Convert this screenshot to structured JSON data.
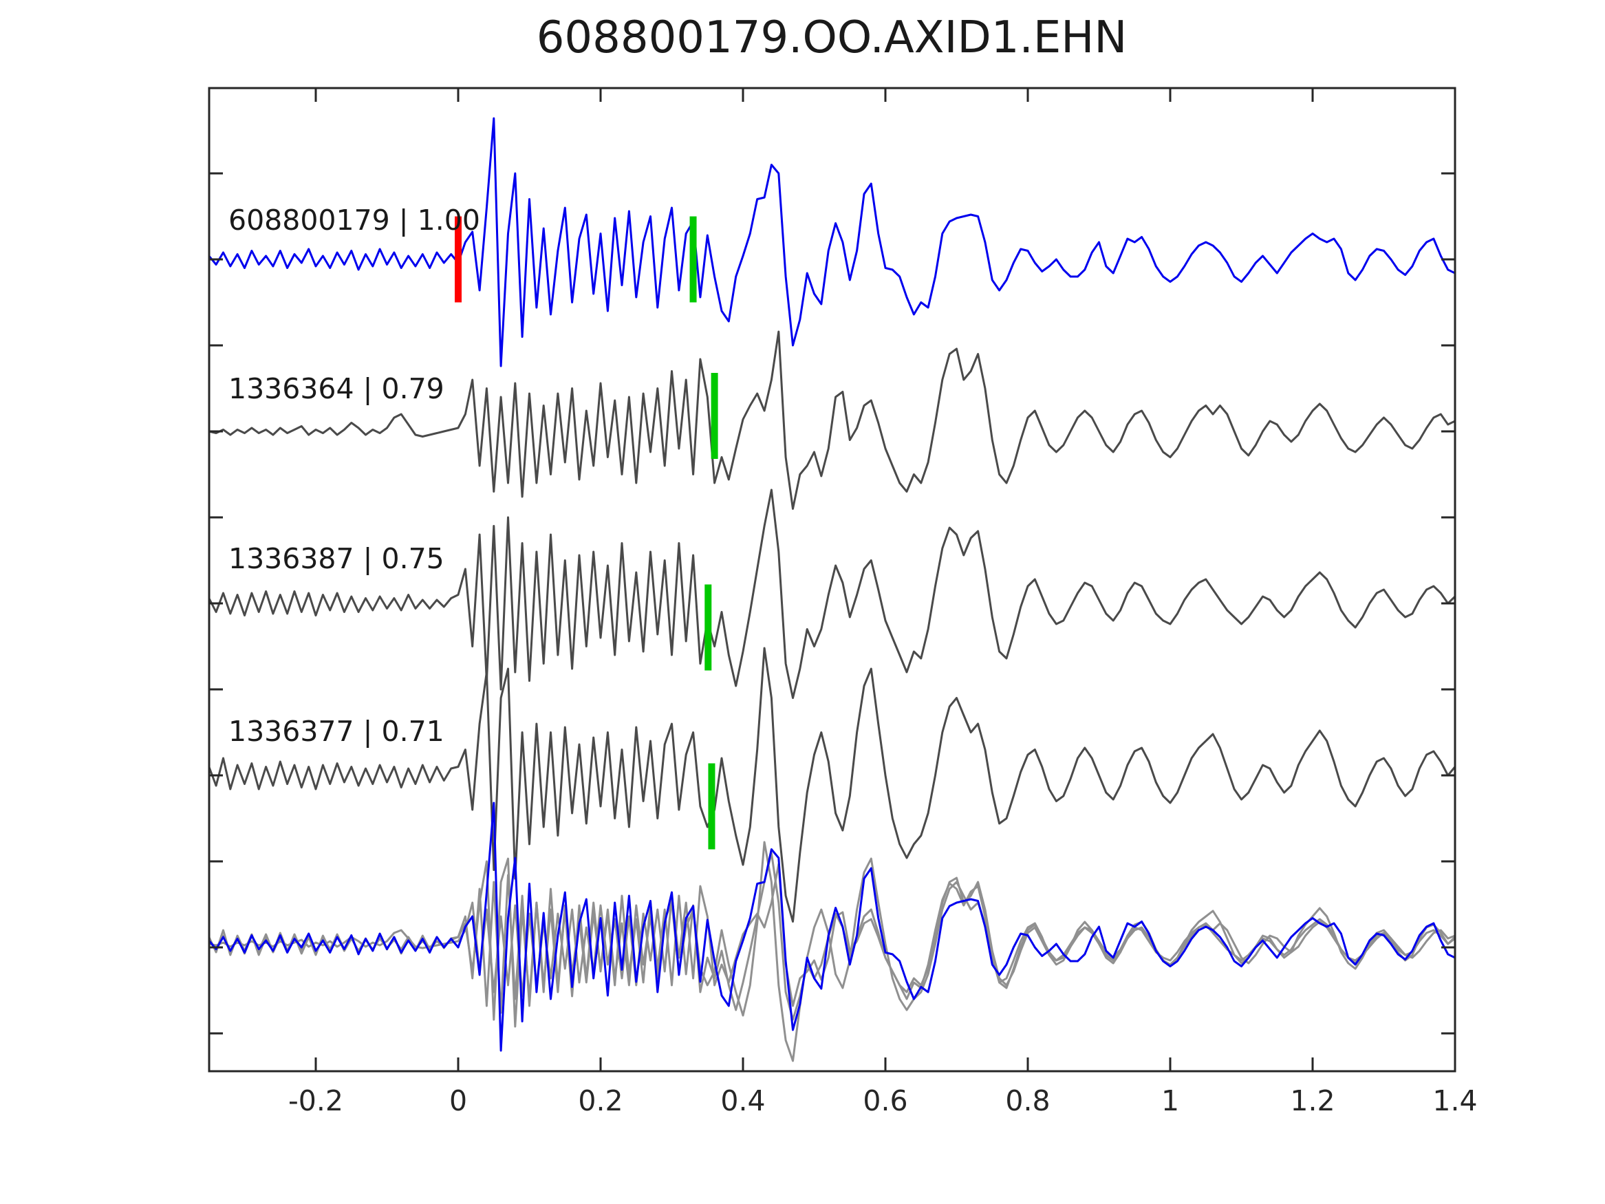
{
  "title": "608800179.OO.AXID1.EHN",
  "chart_data": {
    "type": "line",
    "title": "608800179.OO.AXID1.EHN",
    "xlabel": "",
    "ylabel": "",
    "grid": false,
    "legend_position": "none",
    "xlim": [
      -0.35,
      1.4
    ],
    "x_ticks": [
      -0.2,
      0,
      0.2,
      0.4,
      0.6,
      0.8,
      1,
      1.2,
      1.4
    ],
    "x_tick_labels": [
      "-0.2",
      "0",
      "0.2",
      "0.4",
      "0.6",
      "0.8",
      "1",
      "1.2",
      "1.4"
    ],
    "trace_offsets": [
      4,
      3,
      2,
      1
    ],
    "overlay_offset": 0,
    "sampling": {
      "x0": -0.35,
      "dx": 0.01
    },
    "marker_half_height": 0.25,
    "series": [
      {
        "name": "608800179",
        "label": "608800179 | 1.00",
        "correlation": "1.00",
        "color": "#0000ee",
        "onset_marker": {
          "t": 0.0,
          "amp": 0,
          "color": "#ff0000"
        },
        "pick": {
          "t": 0.33,
          "amp": 0,
          "color": "#00c800"
        },
        "values": [
          0.02,
          -0.03,
          0.04,
          -0.04,
          0.03,
          -0.05,
          0.05,
          -0.03,
          0.02,
          -0.04,
          0.05,
          -0.05,
          0.03,
          -0.02,
          0.06,
          -0.04,
          0.02,
          -0.05,
          0.04,
          -0.03,
          0.05,
          -0.06,
          0.03,
          -0.04,
          0.06,
          -0.03,
          0.04,
          -0.05,
          0.02,
          -0.04,
          0.03,
          -0.05,
          0.04,
          -0.02,
          0.03,
          -0.02,
          0.1,
          0.16,
          -0.18,
          0.3,
          0.82,
          -0.62,
          0.15,
          0.5,
          -0.45,
          0.35,
          -0.28,
          0.18,
          -0.32,
          0.05,
          0.3,
          -0.25,
          0.12,
          0.26,
          -0.2,
          0.15,
          -0.3,
          0.24,
          -0.15,
          0.28,
          -0.22,
          0.1,
          0.25,
          -0.28,
          0.12,
          0.3,
          -0.18,
          0.15,
          0.22,
          -0.22,
          0.14,
          -0.1,
          -0.3,
          -0.36,
          -0.1,
          0.02,
          0.15,
          0.35,
          0.36,
          0.55,
          0.5,
          -0.1,
          -0.5,
          -0.35,
          -0.08,
          -0.2,
          -0.26,
          0.05,
          0.21,
          0.1,
          -0.12,
          0.05,
          0.38,
          0.44,
          0.15,
          -0.05,
          -0.06,
          -0.1,
          -0.22,
          -0.32,
          -0.25,
          -0.28,
          -0.1,
          0.15,
          0.22,
          0.24,
          0.25,
          0.26,
          0.25,
          0.1,
          -0.12,
          -0.18,
          -0.12,
          -0.02,
          0.06,
          0.05,
          -0.02,
          -0.07,
          -0.04,
          0.0,
          -0.06,
          -0.1,
          -0.1,
          -0.06,
          0.04,
          0.1,
          -0.04,
          -0.08,
          0.02,
          0.12,
          0.1,
          0.13,
          0.06,
          -0.04,
          -0.1,
          -0.13,
          -0.1,
          -0.04,
          0.03,
          0.08,
          0.1,
          0.08,
          0.04,
          -0.02,
          -0.1,
          -0.13,
          -0.08,
          -0.02,
          0.02,
          -0.03,
          -0.08,
          -0.02,
          0.04,
          0.08,
          0.12,
          0.15,
          0.12,
          0.1,
          0.12,
          0.06,
          -0.08,
          -0.12,
          -0.06,
          0.02,
          0.06,
          0.05,
          0.0,
          -0.06,
          -0.09,
          -0.04,
          0.05,
          0.1,
          0.12,
          0.02,
          -0.06,
          -0.08
        ]
      },
      {
        "name": "1336364",
        "label": "1336364 | 0.79",
        "correlation": "0.79",
        "color": "#4a4a4a",
        "pick": {
          "t": 0.36,
          "amp": 0.09,
          "color": "#00c800"
        },
        "values": [
          0.0,
          -0.01,
          0.01,
          -0.02,
          0.01,
          -0.01,
          0.02,
          -0.01,
          0.01,
          -0.02,
          0.02,
          -0.01,
          0.01,
          0.03,
          -0.02,
          0.01,
          -0.01,
          0.02,
          -0.02,
          0.01,
          0.05,
          0.02,
          -0.02,
          0.01,
          -0.01,
          0.02,
          0.08,
          0.1,
          0.04,
          -0.02,
          -0.03,
          -0.02,
          -0.01,
          0.0,
          0.01,
          0.02,
          0.1,
          0.3,
          -0.2,
          0.25,
          -0.35,
          0.2,
          -0.3,
          0.28,
          -0.38,
          0.22,
          -0.3,
          0.15,
          -0.25,
          0.22,
          -0.18,
          0.25,
          -0.28,
          0.12,
          -0.2,
          0.28,
          -0.15,
          0.18,
          -0.25,
          0.2,
          -0.3,
          0.22,
          -0.12,
          0.25,
          -0.2,
          0.35,
          -0.1,
          0.3,
          -0.25,
          0.42,
          0.2,
          -0.3,
          -0.15,
          -0.28,
          -0.1,
          0.07,
          0.15,
          0.22,
          0.12,
          0.3,
          0.58,
          -0.15,
          -0.45,
          -0.25,
          -0.2,
          -0.12,
          -0.26,
          -0.1,
          0.2,
          0.23,
          -0.05,
          0.02,
          0.15,
          0.18,
          0.05,
          -0.1,
          -0.2,
          -0.3,
          -0.35,
          -0.25,
          -0.3,
          -0.18,
          0.05,
          0.3,
          0.45,
          0.48,
          0.3,
          0.35,
          0.45,
          0.25,
          -0.05,
          -0.25,
          -0.3,
          -0.2,
          -0.05,
          0.08,
          0.12,
          0.02,
          -0.08,
          -0.12,
          -0.08,
          0.0,
          0.08,
          0.12,
          0.08,
          0.0,
          -0.08,
          -0.12,
          -0.06,
          0.04,
          0.1,
          0.12,
          0.05,
          -0.05,
          -0.12,
          -0.15,
          -0.1,
          -0.02,
          0.06,
          0.12,
          0.15,
          0.1,
          0.15,
          0.1,
          0.0,
          -0.1,
          -0.14,
          -0.08,
          0.0,
          0.06,
          0.04,
          -0.02,
          -0.06,
          -0.02,
          0.06,
          0.12,
          0.16,
          0.12,
          0.04,
          -0.04,
          -0.1,
          -0.12,
          -0.08,
          -0.02,
          0.04,
          0.08,
          0.04,
          -0.02,
          -0.08,
          -0.1,
          -0.05,
          0.02,
          0.08,
          0.1,
          0.04,
          0.06
        ]
      },
      {
        "name": "1336387",
        "label": "1336387 | 0.75",
        "correlation": "0.75",
        "color": "#4a4a4a",
        "pick": {
          "t": 0.351,
          "amp": -0.14,
          "color": "#00c800"
        },
        "values": [
          0.03,
          -0.05,
          0.06,
          -0.06,
          0.05,
          -0.07,
          0.06,
          -0.05,
          0.07,
          -0.06,
          0.05,
          -0.06,
          0.07,
          -0.05,
          0.06,
          -0.07,
          0.05,
          -0.04,
          0.06,
          -0.05,
          0.04,
          -0.05,
          0.03,
          -0.04,
          0.04,
          -0.03,
          0.03,
          -0.04,
          0.05,
          -0.03,
          0.02,
          -0.03,
          0.02,
          -0.02,
          0.03,
          0.05,
          0.2,
          -0.25,
          0.4,
          -0.45,
          0.45,
          -0.5,
          0.5,
          -0.4,
          0.35,
          -0.45,
          0.3,
          -0.35,
          0.4,
          -0.3,
          0.25,
          -0.38,
          0.28,
          -0.25,
          0.3,
          -0.2,
          0.22,
          -0.3,
          0.35,
          -0.22,
          0.18,
          -0.28,
          0.3,
          -0.18,
          0.25,
          -0.3,
          0.35,
          -0.22,
          0.28,
          -0.35,
          -0.1,
          -0.25,
          -0.05,
          -0.3,
          -0.48,
          -0.28,
          -0.05,
          0.2,
          0.45,
          0.66,
          0.3,
          -0.35,
          -0.55,
          -0.38,
          -0.15,
          -0.25,
          -0.15,
          0.05,
          0.22,
          0.12,
          -0.08,
          0.05,
          0.2,
          0.25,
          0.08,
          -0.1,
          -0.2,
          -0.3,
          -0.4,
          -0.28,
          -0.32,
          -0.15,
          0.1,
          0.32,
          0.44,
          0.4,
          0.28,
          0.38,
          0.42,
          0.2,
          -0.08,
          -0.28,
          -0.32,
          -0.18,
          -0.02,
          0.1,
          0.14,
          0.04,
          -0.06,
          -0.12,
          -0.1,
          -0.02,
          0.06,
          0.12,
          0.1,
          0.02,
          -0.06,
          -0.1,
          -0.04,
          0.06,
          0.12,
          0.1,
          0.02,
          -0.06,
          -0.1,
          -0.12,
          -0.06,
          0.02,
          0.08,
          0.12,
          0.14,
          0.08,
          0.02,
          -0.04,
          -0.08,
          -0.12,
          -0.08,
          -0.02,
          0.04,
          0.02,
          -0.04,
          -0.08,
          -0.04,
          0.04,
          0.1,
          0.14,
          0.18,
          0.14,
          0.06,
          -0.04,
          -0.1,
          -0.14,
          -0.08,
          0.0,
          0.06,
          0.08,
          0.02,
          -0.04,
          -0.08,
          -0.06,
          0.02,
          0.08,
          0.1,
          0.06,
          0.0,
          0.04
        ]
      },
      {
        "name": "1336377",
        "label": "1336377 | 0.71",
        "correlation": "0.71",
        "color": "#4a4a4a",
        "pick": {
          "t": 0.356,
          "amp": -0.18,
          "color": "#00c800"
        },
        "values": [
          0.05,
          -0.06,
          0.1,
          -0.08,
          0.06,
          -0.05,
          0.07,
          -0.08,
          0.05,
          -0.06,
          0.08,
          -0.05,
          0.06,
          -0.07,
          0.05,
          -0.08,
          0.06,
          -0.05,
          0.07,
          -0.04,
          0.05,
          -0.06,
          0.04,
          -0.05,
          0.06,
          -0.04,
          0.05,
          -0.07,
          0.04,
          -0.05,
          0.06,
          -0.04,
          0.05,
          -0.03,
          0.04,
          0.05,
          0.15,
          -0.2,
          0.3,
          0.6,
          -0.55,
          0.45,
          0.62,
          -0.6,
          0.25,
          -0.4,
          0.3,
          -0.3,
          0.25,
          -0.35,
          0.28,
          -0.22,
          0.18,
          -0.28,
          0.22,
          -0.18,
          0.25,
          -0.25,
          0.15,
          -0.3,
          0.28,
          -0.15,
          0.2,
          -0.25,
          0.18,
          0.3,
          -0.2,
          0.12,
          0.25,
          -0.18,
          -0.3,
          -0.2,
          0.1,
          -0.15,
          -0.35,
          -0.52,
          -0.3,
          0.15,
          0.74,
          0.45,
          -0.3,
          -0.7,
          -0.85,
          -0.45,
          -0.1,
          0.12,
          0.25,
          0.08,
          -0.22,
          -0.32,
          -0.12,
          0.25,
          0.52,
          0.62,
          0.3,
          0.0,
          -0.25,
          -0.4,
          -0.48,
          -0.4,
          -0.35,
          -0.22,
          0.0,
          0.25,
          0.4,
          0.45,
          0.35,
          0.25,
          0.3,
          0.15,
          -0.1,
          -0.28,
          -0.25,
          -0.12,
          0.02,
          0.12,
          0.15,
          0.05,
          -0.08,
          -0.15,
          -0.12,
          -0.02,
          0.1,
          0.16,
          0.1,
          0.0,
          -0.1,
          -0.14,
          -0.06,
          0.06,
          0.14,
          0.16,
          0.08,
          -0.04,
          -0.12,
          -0.16,
          -0.1,
          0.0,
          0.1,
          0.16,
          0.2,
          0.24,
          0.16,
          0.04,
          -0.08,
          -0.14,
          -0.1,
          -0.02,
          0.06,
          0.04,
          -0.04,
          -0.1,
          -0.06,
          0.06,
          0.14,
          0.2,
          0.26,
          0.2,
          0.08,
          -0.06,
          -0.14,
          -0.18,
          -0.1,
          0.0,
          0.08,
          0.1,
          0.04,
          -0.06,
          -0.12,
          -0.08,
          0.04,
          0.12,
          0.14,
          0.08,
          0.0,
          0.05
        ]
      }
    ],
    "overlay": {
      "description": "all four traces superimposed at bottom",
      "gray_color": "#909090",
      "blue_scale": 1.0,
      "gray_scale": 0.8
    }
  }
}
